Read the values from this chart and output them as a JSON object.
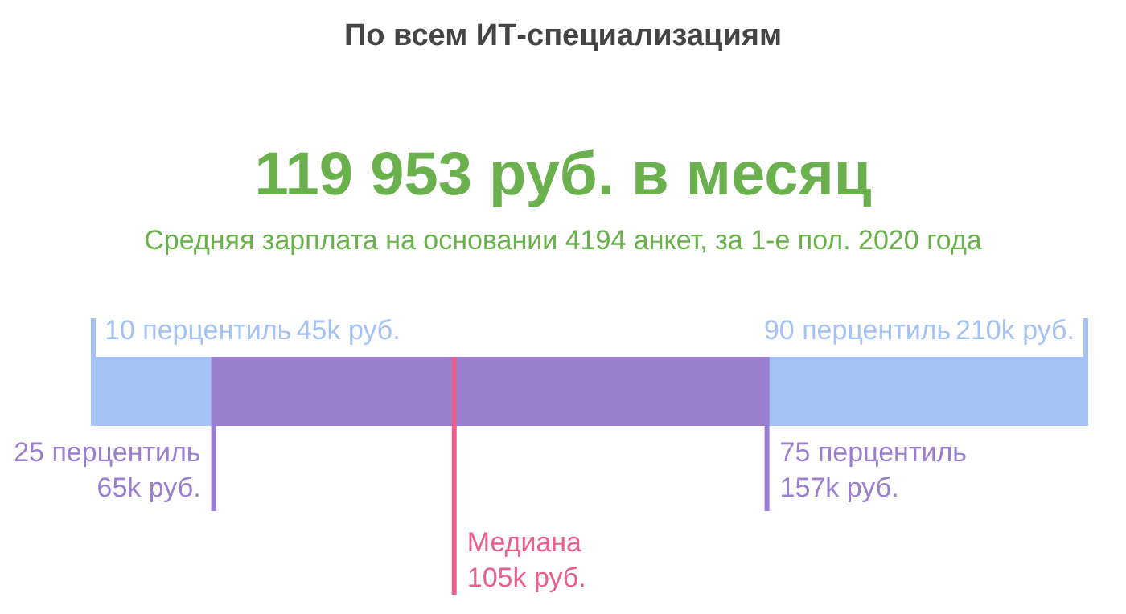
{
  "chart_data": {
    "type": "other",
    "title": "По всем ИТ-специализациям",
    "subtitle": "119 953 руб. в месяц",
    "categories": [
      "10 перцентиль",
      "25 перцентиль",
      "Медиана",
      "75 перцентиль",
      "90 перцентиль"
    ],
    "values": [
      45,
      65,
      105,
      157,
      210
    ],
    "value_labels": [
      "45k руб.",
      "65k руб.",
      "105k руб.",
      "157k руб.",
      "210k руб."
    ],
    "colors": [
      "#a4c2f4",
      "#9a7fcf",
      "#e8608a",
      "#9a7fcf",
      "#a4c2f4"
    ],
    "annotations": [
      "Средняя зарплата на основании 4194 анкет, за 1-е пол. 2020 года"
    ]
  }
}
